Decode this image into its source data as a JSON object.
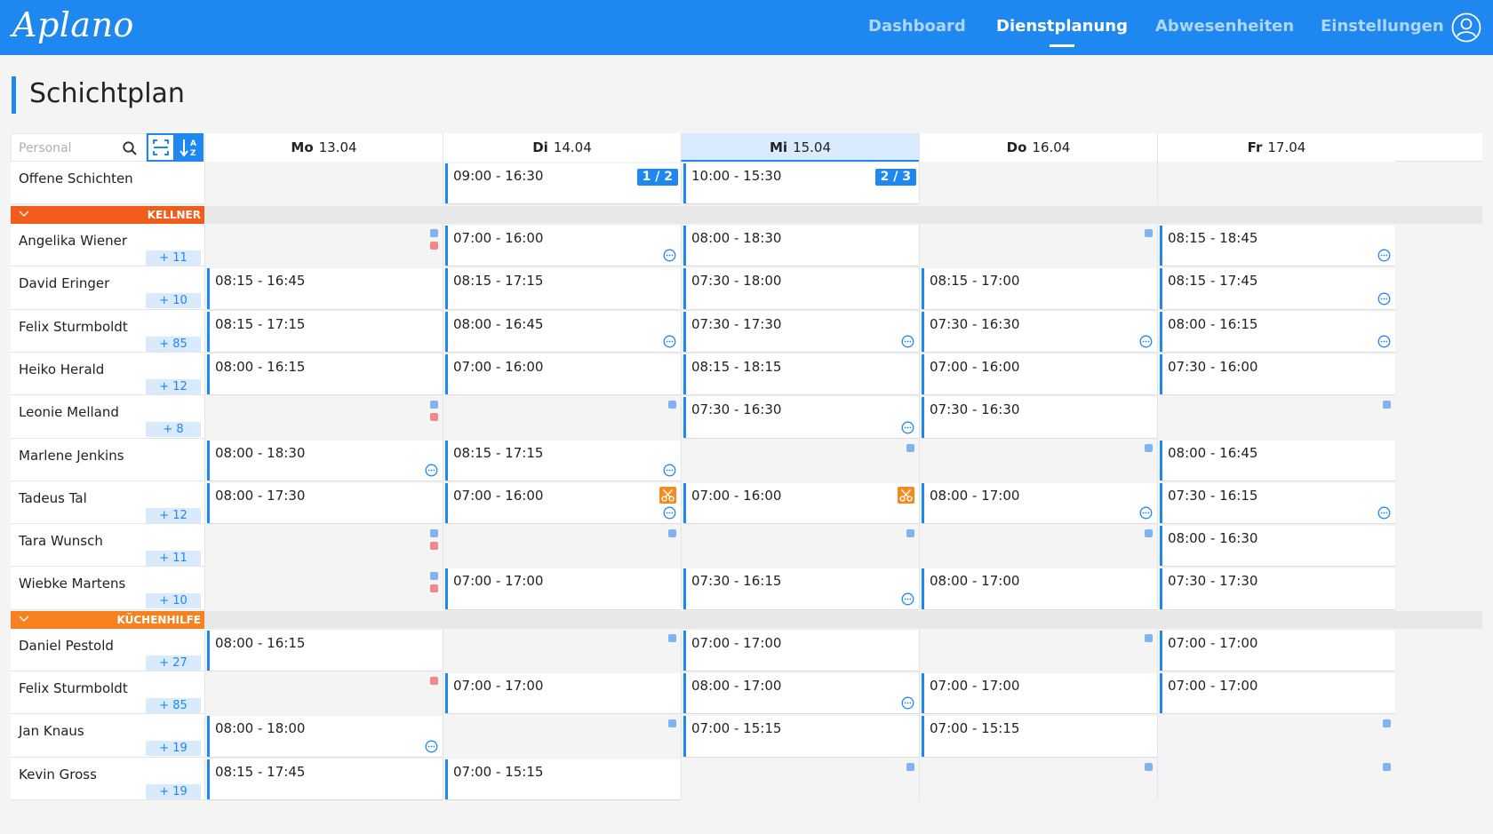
{
  "app": {
    "logo": "Aplano",
    "nav": [
      {
        "label": "Dashboard",
        "active": false
      },
      {
        "label": "Dienstplanung",
        "active": true
      },
      {
        "label": "Abwesenheiten",
        "active": false
      },
      {
        "label": "Einstellungen",
        "active": false
      }
    ],
    "user_icon": "user-circle-icon"
  },
  "page": {
    "title": "Schichtplan"
  },
  "toolbar": {
    "search_placeholder": "Personal",
    "search_icon": "search-icon",
    "expand_icon": "expand-icon",
    "sort_icon": "sort-az-icon"
  },
  "days": [
    {
      "name": "Mo",
      "date": "13.04"
    },
    {
      "name": "Di",
      "date": "14.04"
    },
    {
      "name": "Mi",
      "date": "15.04",
      "today": true
    },
    {
      "name": "Do",
      "date": "16.04"
    },
    {
      "name": "Fr",
      "date": "17.04"
    }
  ],
  "open_shifts": {
    "label": "Offene Schichten",
    "cells": [
      null,
      {
        "time": "09:00 - 16:30",
        "slots": "1 / 2"
      },
      {
        "time": "10:00 - 15:30",
        "slots": "2 / 3"
      },
      null,
      null
    ]
  },
  "groups": [
    {
      "name": "KELLNER",
      "color": "#f25c1a",
      "employees": [
        {
          "name": "Angelika Wiener",
          "count": "+ 11",
          "cells": [
            {
              "dots": [
                "blue",
                "red"
              ]
            },
            {
              "time": "07:00 - 16:00",
              "chat": true
            },
            {
              "time": "08:00 - 18:30"
            },
            {
              "dots": [
                "blue"
              ]
            },
            {
              "time": "08:15 - 18:45",
              "chat": true
            }
          ]
        },
        {
          "name": "David Eringer",
          "count": "+ 10",
          "cells": [
            {
              "time": "08:15 - 16:45"
            },
            {
              "time": "08:15 - 17:15"
            },
            {
              "time": "07:30 - 18:00"
            },
            {
              "time": "08:15 - 17:00"
            },
            {
              "time": "08:15 - 17:45",
              "chat": true
            }
          ]
        },
        {
          "name": "Felix Sturmboldt",
          "count": "+ 85",
          "cells": [
            {
              "time": "08:15 - 17:15"
            },
            {
              "time": "08:00 - 16:45",
              "chat": true
            },
            {
              "time": "07:30 - 17:30",
              "chat": true
            },
            {
              "time": "07:30 - 16:30",
              "chat": true
            },
            {
              "time": "08:00 - 16:15",
              "chat": true
            }
          ]
        },
        {
          "name": "Heiko Herald",
          "count": "+ 12",
          "cells": [
            {
              "time": "08:00 - 16:15"
            },
            {
              "time": "07:00 - 16:00"
            },
            {
              "time": "08:15 - 18:15"
            },
            {
              "time": "07:00 - 16:00"
            },
            {
              "time": "07:30 - 16:00"
            }
          ]
        },
        {
          "name": "Leonie Melland",
          "count": "+ 8",
          "cells": [
            {
              "dots": [
                "blue",
                "red"
              ]
            },
            {
              "dots": [
                "blue"
              ]
            },
            {
              "time": "07:30 - 16:30"
            },
            {
              "time": "07:30 - 16:30",
              "chat": true,
              "chat_on_prev": true
            },
            {
              "dots": [
                "blue"
              ]
            }
          ]
        },
        {
          "name": "Marlene Jenkins",
          "count": "",
          "cells": [
            {
              "time": "08:00 - 18:30",
              "chat": true
            },
            {
              "time": "08:15 - 17:15",
              "chat": true
            },
            {
              "dots": [
                "blue"
              ]
            },
            {
              "dots": [
                "blue"
              ]
            },
            {
              "time": "08:00 - 16:45"
            }
          ]
        },
        {
          "name": "Tadeus Tal",
          "count": "+ 12",
          "cells": [
            {
              "time": "08:00 - 17:30"
            },
            {
              "time": "07:00 - 16:00",
              "chat": true,
              "scissors": true
            },
            {
              "time": "07:00 - 16:00",
              "scissors": true
            },
            {
              "time": "08:00 - 17:00",
              "chat": true
            },
            {
              "time": "07:30 - 16:15",
              "chat": true
            }
          ]
        },
        {
          "name": "Tara Wunsch",
          "count": "+ 11",
          "cells": [
            {
              "dots": [
                "blue",
                "red"
              ]
            },
            {
              "dots": [
                "blue"
              ]
            },
            {
              "dots": [
                "blue"
              ]
            },
            {
              "dots": [
                "blue"
              ]
            },
            {
              "time": "08:00 - 16:30"
            }
          ]
        },
        {
          "name": "Wiebke Martens",
          "count": "+ 10",
          "cells": [
            {
              "dots": [
                "blue",
                "red"
              ]
            },
            {
              "time": "07:00 - 17:00"
            },
            {
              "time": "07:30 - 16:15",
              "chat": true
            },
            {
              "time": "08:00 - 17:00"
            },
            {
              "time": "07:30 - 17:30"
            }
          ]
        }
      ]
    },
    {
      "name": "KÜCHENHILFE",
      "color": "#f5821f",
      "employees": [
        {
          "name": "Daniel Pestold",
          "count": "+ 27",
          "cells": [
            {
              "time": "08:00 - 16:15"
            },
            {
              "dots": [
                "blue"
              ]
            },
            {
              "time": "07:00 - 17:00"
            },
            {
              "dots": [
                "blue"
              ]
            },
            {
              "time": "07:00 - 17:00"
            }
          ]
        },
        {
          "name": "Felix Sturmboldt",
          "count": "+ 85",
          "cells": [
            {
              "dots": [
                "red"
              ]
            },
            {
              "time": "07:00 - 17:00"
            },
            {
              "time": "08:00 - 17:00",
              "chat": true
            },
            {
              "time": "07:00 - 17:00"
            },
            {
              "time": "07:00 - 17:00"
            }
          ]
        },
        {
          "name": "Jan Knaus",
          "count": "+ 19",
          "cells": [
            {
              "time": "08:00 - 18:00",
              "chat": true
            },
            {
              "dots": [
                "blue"
              ]
            },
            {
              "time": "07:00 - 15:15"
            },
            {
              "time": "07:00 - 15:15"
            },
            {
              "dots": [
                "blue"
              ]
            }
          ]
        },
        {
          "name": "Kevin Gross",
          "count": "+ 19",
          "cells": [
            {
              "time": "08:15 - 17:45"
            },
            {
              "time": "07:00 - 15:15"
            },
            {
              "dots": [
                "blue"
              ]
            },
            {
              "dots": [
                "blue"
              ]
            },
            {
              "dots": [
                "blue"
              ]
            }
          ]
        }
      ]
    }
  ]
}
